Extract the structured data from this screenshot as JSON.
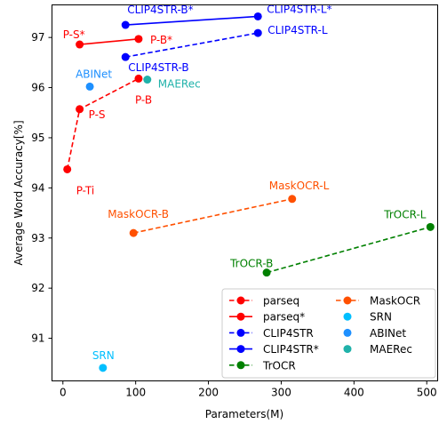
{
  "chart_data": {
    "type": "scatter",
    "xlabel": "Parameters(M)",
    "ylabel": "Average Word Accuracy[%]",
    "xlim": [
      -15,
      515
    ],
    "ylim": [
      90.15,
      97.65
    ],
    "xticks": [
      0,
      100,
      200,
      300,
      400,
      500
    ],
    "yticks": [
      91,
      92,
      93,
      94,
      95,
      96,
      97
    ],
    "xtick_labels": [
      "0",
      "100",
      "200",
      "300",
      "400",
      "500"
    ],
    "ytick_labels": [
      "91",
      "92",
      "93",
      "94",
      "95",
      "96",
      "97"
    ],
    "grid": false,
    "legend_position": "bottom-right",
    "series": [
      {
        "name": "parseq",
        "color": "#ff0000",
        "style": "dashed",
        "x": [
          6,
          23,
          104
        ],
        "y": [
          94.37,
          95.57,
          96.18
        ]
      },
      {
        "name": "parseq*",
        "color": "#ff0000",
        "style": "solid",
        "x": [
          23,
          104
        ],
        "y": [
          96.86,
          96.97
        ]
      },
      {
        "name": "CLIP4STR",
        "color": "#0000ff",
        "style": "dashed",
        "x": [
          86,
          268
        ],
        "y": [
          96.61,
          97.09
        ]
      },
      {
        "name": "CLIP4STR*",
        "color": "#0000ff",
        "style": "solid",
        "x": [
          86,
          268
        ],
        "y": [
          97.25,
          97.42
        ]
      },
      {
        "name": "TrOCR",
        "color": "#008000",
        "style": "dashed",
        "x": [
          280,
          505
        ],
        "y": [
          92.31,
          93.22
        ]
      },
      {
        "name": "MaskOCR",
        "color": "#ff5000",
        "style": "dashed",
        "x": [
          97,
          315
        ],
        "y": [
          93.1,
          93.78
        ]
      },
      {
        "name": "SRN",
        "color": "#00bfff",
        "style": "point",
        "x": [
          55
        ],
        "y": [
          90.41
        ]
      },
      {
        "name": "ABINet",
        "color": "#1e90ff",
        "style": "point",
        "x": [
          37
        ],
        "y": [
          96.02
        ]
      },
      {
        "name": "MAERec",
        "color": "#20b2aa",
        "style": "point",
        "x": [
          116
        ],
        "y": [
          96.16
        ]
      }
    ],
    "annotations": [
      {
        "text": "P-Ti",
        "x": 6,
        "y": 94.37,
        "color": "#ff0000",
        "anchor": "start",
        "dx": 10,
        "dy": 28
      },
      {
        "text": "P-S",
        "x": 23,
        "y": 95.57,
        "color": "#ff0000",
        "anchor": "start",
        "dx": 10,
        "dy": 10
      },
      {
        "text": "P-B",
        "x": 104,
        "y": 96.18,
        "color": "#ff0000",
        "anchor": "start",
        "dx": -4,
        "dy": 28
      },
      {
        "text": "P-S*",
        "x": 23,
        "y": 96.86,
        "color": "#ff0000",
        "anchor": "end",
        "dx": 6,
        "dy": -7
      },
      {
        "text": "P-B*",
        "x": 104,
        "y": 96.97,
        "color": "#ff0000",
        "anchor": "start",
        "dx": 13,
        "dy": 5
      },
      {
        "text": "CLIP4STR-B",
        "x": 86,
        "y": 96.61,
        "color": "#0000ff",
        "anchor": "start",
        "dx": 3,
        "dy": 16
      },
      {
        "text": "CLIP4STR-L",
        "x": 268,
        "y": 97.09,
        "color": "#0000ff",
        "anchor": "start",
        "dx": 11,
        "dy": 1
      },
      {
        "text": "CLIP4STR-B*",
        "x": 86,
        "y": 97.25,
        "color": "#0000ff",
        "anchor": "start",
        "dx": 2,
        "dy": -13
      },
      {
        "text": "CLIP4STR-L*",
        "x": 268,
        "y": 97.42,
        "color": "#0000ff",
        "anchor": "start",
        "dx": 10,
        "dy": -4
      },
      {
        "text": "ABINet",
        "x": 37,
        "y": 96.02,
        "color": "#1e90ff",
        "anchor": "start",
        "dx": -16,
        "dy": -10
      },
      {
        "text": "MAERec",
        "x": 116,
        "y": 96.16,
        "color": "#20b2aa",
        "anchor": "start",
        "dx": 12,
        "dy": 9
      },
      {
        "text": "SRN",
        "x": 55,
        "y": 90.41,
        "color": "#00bfff",
        "anchor": "start",
        "dx": -12,
        "dy": -10
      },
      {
        "text": "MaskOCR-B",
        "x": 97,
        "y": 93.1,
        "color": "#ff5000",
        "anchor": "start",
        "dx": -29,
        "dy": -17
      },
      {
        "text": "MaskOCR-L",
        "x": 315,
        "y": 93.78,
        "color": "#ff5000",
        "anchor": "start",
        "dx": -26,
        "dy": -11
      },
      {
        "text": "TrOCR-B",
        "x": 280,
        "y": 92.31,
        "color": "#008000",
        "anchor": "start",
        "dx": -41,
        "dy": -6
      },
      {
        "text": "TrOCR-L",
        "x": 505,
        "y": 93.22,
        "color": "#008000",
        "anchor": "start",
        "dx": -52,
        "dy": -10
      }
    ]
  }
}
